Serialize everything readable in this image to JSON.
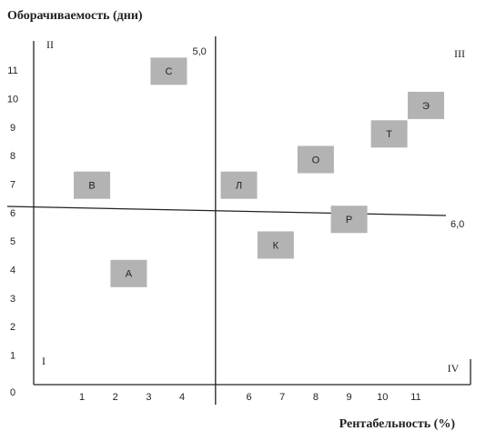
{
  "chart_data": {
    "type": "scatter",
    "y_label": "Оборачиваемость (дни)",
    "x_label": "Рентабельность (%)",
    "xlim": [
      -0.5,
      12.5
    ],
    "ylim": [
      0,
      12
    ],
    "xticks": [
      1,
      2,
      3,
      4,
      6,
      7,
      8,
      9,
      10,
      11
    ],
    "yticks": [
      0,
      1,
      2,
      3,
      4,
      5,
      6,
      7,
      8,
      9,
      10,
      11
    ],
    "x": [
      3.6,
      1.3,
      5.7,
      2.4,
      6.8,
      9.0,
      8.0,
      10.2,
      11.3
    ],
    "values": [
      11,
      7,
      7,
      3.9,
      4.9,
      5.8,
      7.9,
      8.8,
      9.8
    ],
    "point_labels": [
      "С",
      "В",
      "Л",
      "А",
      "К",
      "Р",
      "О",
      "Т",
      "Э"
    ],
    "color": "#b3b3b3",
    "x_divider": {
      "value": 5,
      "label": "5,0"
    },
    "y_divider": {
      "value": 6,
      "label": "6,0"
    },
    "quadrant_labels": [
      "I",
      "II",
      "III",
      "IV"
    ]
  }
}
